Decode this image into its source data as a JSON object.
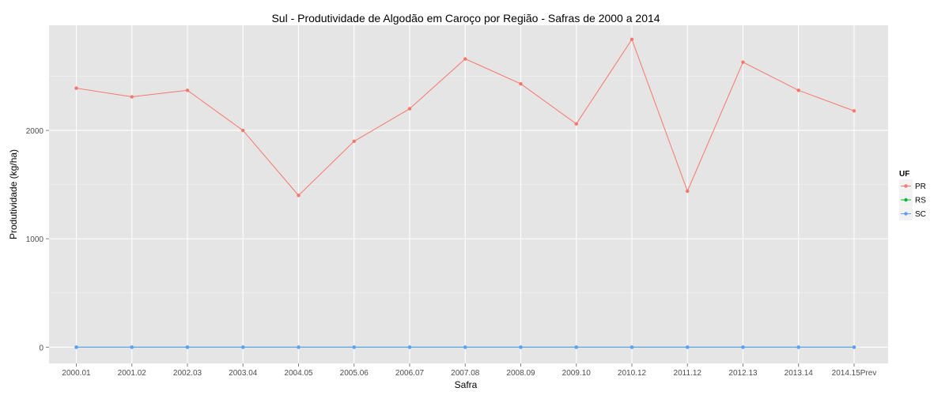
{
  "chart_data": {
    "type": "line",
    "title": "Sul  - Produtividade de Algodão em Caroço por Região - Safras de 2000 a 2014",
    "xlabel": "Safra",
    "ylabel": "Produtividade (kg/ha)",
    "categories": [
      "2000.01",
      "2001.02",
      "2002.03",
      "2003.04",
      "2004.05",
      "2005.06",
      "2006.07",
      "2007.08",
      "2008.09",
      "2009.10",
      "2010.12",
      "2011.12",
      "2012.13",
      "2013.14",
      "2014.15Prev"
    ],
    "ylim": [
      -150,
      2970
    ],
    "yticks": [
      0,
      1000,
      2000
    ],
    "ytick_labels": [
      "0",
      "1000",
      "2000"
    ],
    "grid": true,
    "legend": {
      "title": "UF",
      "position": "right"
    },
    "series": [
      {
        "name": "PR",
        "color": "#f8766d",
        "values": [
          2390,
          2310,
          2370,
          2000,
          1400,
          1900,
          2200,
          2660,
          2430,
          2060,
          2840,
          1440,
          2630,
          2370,
          2180
        ]
      },
      {
        "name": "RS",
        "color": "#00ba38",
        "values": [
          0,
          0,
          0,
          0,
          0,
          0,
          0,
          0,
          0,
          0,
          0,
          0,
          0,
          0,
          0
        ]
      },
      {
        "name": "SC",
        "color": "#619cff",
        "values": [
          0,
          0,
          0,
          0,
          0,
          0,
          0,
          0,
          0,
          0,
          0,
          0,
          0,
          0,
          0
        ]
      }
    ]
  }
}
